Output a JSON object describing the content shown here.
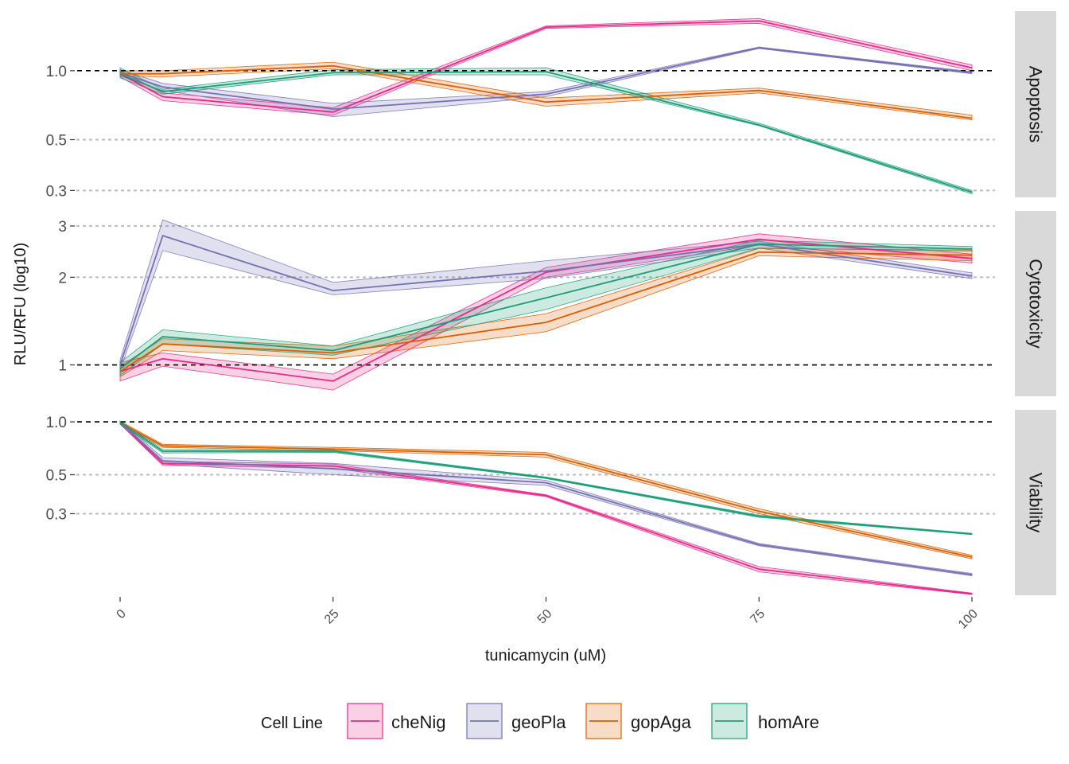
{
  "chart_data": {
    "type": "line",
    "title": "",
    "xlabel": "tunicamycin (uM)",
    "ylabel": "RLU/RFU (log10)",
    "x": [
      0,
      5,
      25,
      50,
      75,
      100
    ],
    "xticks": [
      "0",
      "25",
      "50",
      "75",
      "100"
    ],
    "xlim": [
      0,
      100
    ],
    "yscale": "log10",
    "legend": {
      "title": "Cell Line",
      "placement": "bottom",
      "entries": [
        "cheNig",
        "geoPla",
        "gopAga",
        "homAre"
      ]
    },
    "colors": {
      "cheNig": "#e7298a",
      "geoPla": "#7570b3",
      "gopAga": "#d95f02",
      "homAre": "#1b9e77"
    },
    "reference_line": 1.0,
    "panels": [
      {
        "strip": "Apoptosis",
        "yticks": [
          "0.3",
          "0.5",
          "1.0"
        ],
        "tick_values": [
          0.3,
          0.5,
          1.0
        ],
        "ylim": [
          0.28,
          1.82
        ],
        "series": [
          {
            "name": "cheNig",
            "values": [
              0.97,
              0.77,
              0.66,
              1.55,
              1.65,
              1.03
            ],
            "lower": [
              0.94,
              0.74,
              0.64,
              1.53,
              1.61,
              1.0
            ],
            "upper": [
              1.0,
              0.8,
              0.69,
              1.57,
              1.69,
              1.06
            ]
          },
          {
            "name": "geoPla",
            "values": [
              0.98,
              0.85,
              0.68,
              0.79,
              1.26,
              0.98
            ],
            "lower": [
              0.95,
              0.82,
              0.63,
              0.77,
              1.25,
              0.97
            ],
            "upper": [
              1.01,
              0.88,
              0.72,
              0.81,
              1.27,
              0.99
            ]
          },
          {
            "name": "gopAga",
            "values": [
              0.97,
              0.97,
              1.05,
              0.73,
              0.82,
              0.62
            ],
            "lower": [
              0.95,
              0.94,
              1.02,
              0.7,
              0.8,
              0.61
            ],
            "upper": [
              1.0,
              1.0,
              1.09,
              0.76,
              0.84,
              0.64
            ]
          },
          {
            "name": "homAre",
            "values": [
              0.97,
              0.81,
              0.98,
              0.99,
              0.58,
              0.295
            ],
            "lower": [
              0.93,
              0.79,
              0.96,
              0.96,
              0.575,
              0.29
            ],
            "upper": [
              1.03,
              0.83,
              1.01,
              1.03,
              0.59,
              0.3
            ]
          }
        ]
      },
      {
        "strip": "Cytotoxicity",
        "yticks": [
          "1",
          "2",
          "3"
        ],
        "tick_values": [
          1,
          2,
          3
        ],
        "ylim": [
          0.78,
          3.38
        ],
        "series": [
          {
            "name": "cheNig",
            "values": [
              0.95,
              1.05,
              0.88,
              2.08,
              2.7,
              2.32
            ],
            "lower": [
              0.88,
              0.99,
              0.82,
              2.0,
              2.58,
              2.24
            ],
            "upper": [
              1.02,
              1.1,
              0.93,
              2.16,
              2.82,
              2.4
            ]
          },
          {
            "name": "geoPla",
            "values": [
              1.0,
              2.78,
              1.8,
              2.1,
              2.6,
              2.02
            ],
            "lower": [
              0.96,
              2.47,
              1.74,
              1.98,
              2.52,
              1.98
            ],
            "upper": [
              1.04,
              3.15,
              1.92,
              2.28,
              2.66,
              2.07
            ]
          },
          {
            "name": "gopAga",
            "values": [
              0.95,
              1.18,
              1.1,
              1.4,
              2.44,
              2.38
            ],
            "lower": [
              0.91,
              1.12,
              1.05,
              1.3,
              2.37,
              2.28
            ],
            "upper": [
              0.99,
              1.23,
              1.16,
              1.5,
              2.51,
              2.48
            ]
          },
          {
            "name": "homAre",
            "values": [
              0.97,
              1.25,
              1.12,
              1.7,
              2.6,
              2.5
            ],
            "lower": [
              0.92,
              1.18,
              1.08,
              1.55,
              2.52,
              2.46
            ],
            "upper": [
              1.02,
              1.32,
              1.16,
              1.84,
              2.68,
              2.55
            ]
          }
        ]
      },
      {
        "strip": "Viability",
        "yticks": [
          "0.3",
          "0.5",
          "1.0"
        ],
        "tick_values": [
          0.3,
          0.5,
          1.0
        ],
        "ylim": [
          0.103,
          1.17
        ],
        "series": [
          {
            "name": "cheNig",
            "values": [
              0.99,
              0.58,
              0.56,
              0.38,
              0.145,
              0.105
            ],
            "lower": [
              0.97,
              0.565,
              0.545,
              0.375,
              0.14,
              0.104
            ],
            "upper": [
              1.01,
              0.595,
              0.575,
              0.385,
              0.15,
              0.106
            ]
          },
          {
            "name": "geoPla",
            "values": [
              0.99,
              0.6,
              0.54,
              0.45,
              0.2,
              0.135
            ],
            "lower": [
              0.97,
              0.575,
              0.5,
              0.435,
              0.197,
              0.133
            ],
            "upper": [
              1.01,
              0.625,
              0.58,
              0.465,
              0.203,
              0.137
            ]
          },
          {
            "name": "gopAga",
            "values": [
              0.99,
              0.73,
              0.7,
              0.65,
              0.31,
              0.17
            ],
            "lower": [
              0.97,
              0.715,
              0.685,
              0.63,
              0.3,
              0.166
            ],
            "upper": [
              1.01,
              0.745,
              0.715,
              0.67,
              0.32,
              0.174
            ]
          },
          {
            "name": "homAre",
            "values": [
              0.99,
              0.68,
              0.68,
              0.48,
              0.29,
              0.23
            ],
            "lower": [
              0.97,
              0.665,
              0.67,
              0.475,
              0.286,
              0.228
            ],
            "upper": [
              1.01,
              0.695,
              0.69,
              0.485,
              0.294,
              0.232
            ]
          }
        ]
      }
    ]
  }
}
